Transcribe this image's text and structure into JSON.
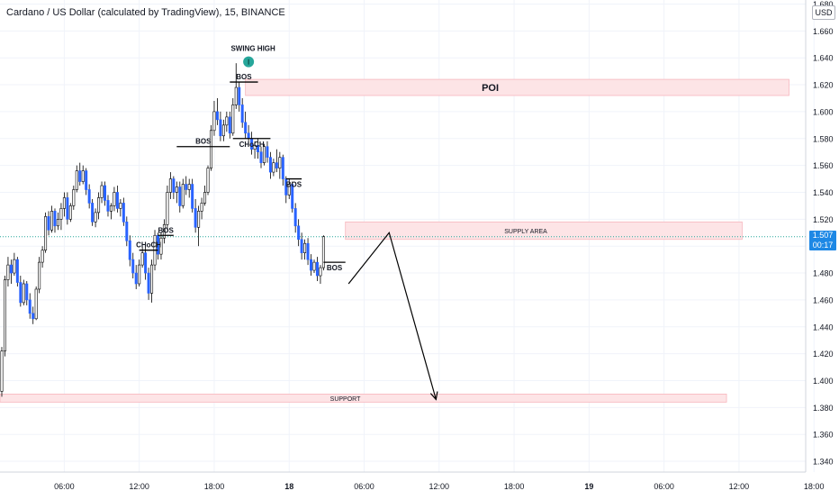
{
  "title": "Cardano / US Dollar (calculated by TradingView), 15, BINANCE",
  "price_axis_unit": "USD",
  "last_price": "1.507",
  "countdown": "00:17",
  "colors": {
    "bull": "#ffffff",
    "bear": "#2962ff",
    "wick": "#000000",
    "zone_fill": "#fde4e6",
    "zone_border": "#f7b6bd",
    "price_line": "#26a69a",
    "swing_dot": "#26a69a",
    "grid": "#f0f3fa"
  },
  "chart_data": {
    "type": "candlestick",
    "y_ticks": [
      "1.680",
      "1.660",
      "1.640",
      "1.620",
      "1.600",
      "1.580",
      "1.560",
      "1.540",
      "1.520",
      "1.500",
      "1.480",
      "1.460",
      "1.440",
      "1.420",
      "1.400",
      "1.380",
      "1.360",
      "1.340"
    ],
    "y_tick_values": [
      1.68,
      1.66,
      1.64,
      1.62,
      1.6,
      1.58,
      1.56,
      1.54,
      1.52,
      1.5,
      1.48,
      1.46,
      1.44,
      1.42,
      1.4,
      1.38,
      1.36,
      1.34
    ],
    "ylim": [
      1.332,
      1.683
    ],
    "x_ticks": [
      {
        "label": "06:00",
        "bar": 20,
        "bold": false
      },
      {
        "label": "12:00",
        "bar": 44,
        "bold": false
      },
      {
        "label": "18:00",
        "bar": 68,
        "bold": false
      },
      {
        "label": "18",
        "bar": 92,
        "bold": true
      },
      {
        "label": "06:00",
        "bar": 116,
        "bold": false
      },
      {
        "label": "12:00",
        "bar": 140,
        "bold": false
      },
      {
        "label": "18:00",
        "bar": 164,
        "bold": false
      },
      {
        "label": "19",
        "bar": 188,
        "bold": true
      },
      {
        "label": "06:00",
        "bar": 212,
        "bold": false
      },
      {
        "label": "12:00",
        "bar": 236,
        "bold": false
      },
      {
        "label": "18:00",
        "bar": 260,
        "bold": false
      }
    ],
    "candles": [
      {
        "o": 1.392,
        "h": 1.425,
        "l": 1.388,
        "c": 1.422
      },
      {
        "o": 1.422,
        "h": 1.478,
        "l": 1.418,
        "c": 1.475
      },
      {
        "o": 1.475,
        "h": 1.492,
        "l": 1.47,
        "c": 1.486
      },
      {
        "o": 1.486,
        "h": 1.49,
        "l": 1.472,
        "c": 1.48
      },
      {
        "o": 1.48,
        "h": 1.495,
        "l": 1.478,
        "c": 1.49
      },
      {
        "o": 1.49,
        "h": 1.492,
        "l": 1.47,
        "c": 1.473
      },
      {
        "o": 1.473,
        "h": 1.478,
        "l": 1.455,
        "c": 1.458
      },
      {
        "o": 1.458,
        "h": 1.475,
        "l": 1.456,
        "c": 1.472
      },
      {
        "o": 1.472,
        "h": 1.474,
        "l": 1.456,
        "c": 1.46
      },
      {
        "o": 1.46,
        "h": 1.465,
        "l": 1.446,
        "c": 1.45
      },
      {
        "o": 1.45,
        "h": 1.455,
        "l": 1.442,
        "c": 1.446
      },
      {
        "o": 1.446,
        "h": 1.47,
        "l": 1.445,
        "c": 1.468
      },
      {
        "o": 1.468,
        "h": 1.492,
        "l": 1.465,
        "c": 1.488
      },
      {
        "o": 1.488,
        "h": 1.5,
        "l": 1.484,
        "c": 1.497
      },
      {
        "o": 1.497,
        "h": 1.525,
        "l": 1.495,
        "c": 1.522
      },
      {
        "o": 1.522,
        "h": 1.526,
        "l": 1.508,
        "c": 1.512
      },
      {
        "o": 1.512,
        "h": 1.53,
        "l": 1.51,
        "c": 1.526
      },
      {
        "o": 1.526,
        "h": 1.528,
        "l": 1.51,
        "c": 1.515
      },
      {
        "o": 1.515,
        "h": 1.525,
        "l": 1.512,
        "c": 1.52
      },
      {
        "o": 1.52,
        "h": 1.532,
        "l": 1.512,
        "c": 1.528
      },
      {
        "o": 1.528,
        "h": 1.54,
        "l": 1.522,
        "c": 1.536
      },
      {
        "o": 1.536,
        "h": 1.54,
        "l": 1.516,
        "c": 1.52
      },
      {
        "o": 1.52,
        "h": 1.532,
        "l": 1.518,
        "c": 1.53
      },
      {
        "o": 1.53,
        "h": 1.545,
        "l": 1.527,
        "c": 1.542
      },
      {
        "o": 1.542,
        "h": 1.56,
        "l": 1.54,
        "c": 1.556
      },
      {
        "o": 1.556,
        "h": 1.562,
        "l": 1.545,
        "c": 1.548
      },
      {
        "o": 1.548,
        "h": 1.56,
        "l": 1.546,
        "c": 1.556
      },
      {
        "o": 1.556,
        "h": 1.558,
        "l": 1.538,
        "c": 1.542
      },
      {
        "o": 1.542,
        "h": 1.546,
        "l": 1.528,
        "c": 1.532
      },
      {
        "o": 1.532,
        "h": 1.535,
        "l": 1.515,
        "c": 1.518
      },
      {
        "o": 1.518,
        "h": 1.528,
        "l": 1.514,
        "c": 1.525
      },
      {
        "o": 1.525,
        "h": 1.54,
        "l": 1.52,
        "c": 1.536
      },
      {
        "o": 1.536,
        "h": 1.548,
        "l": 1.532,
        "c": 1.545
      },
      {
        "o": 1.545,
        "h": 1.548,
        "l": 1.53,
        "c": 1.534
      },
      {
        "o": 1.534,
        "h": 1.538,
        "l": 1.522,
        "c": 1.526
      },
      {
        "o": 1.526,
        "h": 1.532,
        "l": 1.52,
        "c": 1.53
      },
      {
        "o": 1.53,
        "h": 1.544,
        "l": 1.526,
        "c": 1.54
      },
      {
        "o": 1.54,
        "h": 1.545,
        "l": 1.525,
        "c": 1.528
      },
      {
        "o": 1.528,
        "h": 1.535,
        "l": 1.522,
        "c": 1.532
      },
      {
        "o": 1.532,
        "h": 1.536,
        "l": 1.515,
        "c": 1.518
      },
      {
        "o": 1.518,
        "h": 1.522,
        "l": 1.5,
        "c": 1.504
      },
      {
        "o": 1.504,
        "h": 1.508,
        "l": 1.485,
        "c": 1.49
      },
      {
        "o": 1.49,
        "h": 1.495,
        "l": 1.476,
        "c": 1.48
      },
      {
        "o": 1.48,
        "h": 1.486,
        "l": 1.468,
        "c": 1.472
      },
      {
        "o": 1.472,
        "h": 1.49,
        "l": 1.47,
        "c": 1.486
      },
      {
        "o": 1.486,
        "h": 1.5,
        "l": 1.484,
        "c": 1.495
      },
      {
        "o": 1.495,
        "h": 1.5,
        "l": 1.475,
        "c": 1.48
      },
      {
        "o": 1.48,
        "h": 1.484,
        "l": 1.46,
        "c": 1.465
      },
      {
        "o": 1.465,
        "h": 1.49,
        "l": 1.458,
        "c": 1.486
      },
      {
        "o": 1.486,
        "h": 1.512,
        "l": 1.482,
        "c": 1.508
      },
      {
        "o": 1.508,
        "h": 1.51,
        "l": 1.49,
        "c": 1.494
      },
      {
        "o": 1.494,
        "h": 1.51,
        "l": 1.49,
        "c": 1.506
      },
      {
        "o": 1.506,
        "h": 1.52,
        "l": 1.502,
        "c": 1.516
      },
      {
        "o": 1.516,
        "h": 1.545,
        "l": 1.512,
        "c": 1.54
      },
      {
        "o": 1.54,
        "h": 1.555,
        "l": 1.535,
        "c": 1.55
      },
      {
        "o": 1.55,
        "h": 1.552,
        "l": 1.535,
        "c": 1.54
      },
      {
        "o": 1.54,
        "h": 1.548,
        "l": 1.532,
        "c": 1.544
      },
      {
        "o": 1.544,
        "h": 1.548,
        "l": 1.525,
        "c": 1.53
      },
      {
        "o": 1.53,
        "h": 1.55,
        "l": 1.528,
        "c": 1.546
      },
      {
        "o": 1.546,
        "h": 1.552,
        "l": 1.538,
        "c": 1.542
      },
      {
        "o": 1.542,
        "h": 1.55,
        "l": 1.536,
        "c": 1.546
      },
      {
        "o": 1.546,
        "h": 1.55,
        "l": 1.525,
        "c": 1.528
      },
      {
        "o": 1.528,
        "h": 1.535,
        "l": 1.51,
        "c": 1.514
      },
      {
        "o": 1.514,
        "h": 1.53,
        "l": 1.5,
        "c": 1.526
      },
      {
        "o": 1.526,
        "h": 1.536,
        "l": 1.52,
        "c": 1.532
      },
      {
        "o": 1.532,
        "h": 1.545,
        "l": 1.53,
        "c": 1.54
      },
      {
        "o": 1.54,
        "h": 1.56,
        "l": 1.538,
        "c": 1.558
      },
      {
        "o": 1.558,
        "h": 1.59,
        "l": 1.556,
        "c": 1.586
      },
      {
        "o": 1.586,
        "h": 1.608,
        "l": 1.582,
        "c": 1.6
      },
      {
        "o": 1.6,
        "h": 1.61,
        "l": 1.59,
        "c": 1.594
      },
      {
        "o": 1.594,
        "h": 1.6,
        "l": 1.578,
        "c": 1.582
      },
      {
        "o": 1.582,
        "h": 1.594,
        "l": 1.578,
        "c": 1.59
      },
      {
        "o": 1.59,
        "h": 1.6,
        "l": 1.585,
        "c": 1.596
      },
      {
        "o": 1.596,
        "h": 1.6,
        "l": 1.58,
        "c": 1.584
      },
      {
        "o": 1.584,
        "h": 1.61,
        "l": 1.582,
        "c": 1.605
      },
      {
        "o": 1.605,
        "h": 1.636,
        "l": 1.602,
        "c": 1.618
      },
      {
        "o": 1.618,
        "h": 1.622,
        "l": 1.6,
        "c": 1.605
      },
      {
        "o": 1.605,
        "h": 1.61,
        "l": 1.588,
        "c": 1.592
      },
      {
        "o": 1.592,
        "h": 1.6,
        "l": 1.58,
        "c": 1.584
      },
      {
        "o": 1.584,
        "h": 1.59,
        "l": 1.575,
        "c": 1.58
      },
      {
        "o": 1.58,
        "h": 1.585,
        "l": 1.568,
        "c": 1.572
      },
      {
        "o": 1.572,
        "h": 1.578,
        "l": 1.565,
        "c": 1.575
      },
      {
        "o": 1.575,
        "h": 1.58,
        "l": 1.565,
        "c": 1.57
      },
      {
        "o": 1.57,
        "h": 1.574,
        "l": 1.558,
        "c": 1.562
      },
      {
        "o": 1.562,
        "h": 1.576,
        "l": 1.56,
        "c": 1.574
      },
      {
        "o": 1.574,
        "h": 1.578,
        "l": 1.562,
        "c": 1.566
      },
      {
        "o": 1.566,
        "h": 1.57,
        "l": 1.55,
        "c": 1.555
      },
      {
        "o": 1.555,
        "h": 1.565,
        "l": 1.552,
        "c": 1.562
      },
      {
        "o": 1.562,
        "h": 1.572,
        "l": 1.555,
        "c": 1.558
      },
      {
        "o": 1.558,
        "h": 1.57,
        "l": 1.55,
        "c": 1.566
      },
      {
        "o": 1.566,
        "h": 1.568,
        "l": 1.545,
        "c": 1.55
      },
      {
        "o": 1.55,
        "h": 1.552,
        "l": 1.532,
        "c": 1.538
      },
      {
        "o": 1.538,
        "h": 1.55,
        "l": 1.535,
        "c": 1.546
      },
      {
        "o": 1.546,
        "h": 1.548,
        "l": 1.525,
        "c": 1.528
      },
      {
        "o": 1.528,
        "h": 1.532,
        "l": 1.51,
        "c": 1.515
      },
      {
        "o": 1.515,
        "h": 1.52,
        "l": 1.5,
        "c": 1.505
      },
      {
        "o": 1.505,
        "h": 1.51,
        "l": 1.49,
        "c": 1.495
      },
      {
        "o": 1.495,
        "h": 1.505,
        "l": 1.49,
        "c": 1.502
      },
      {
        "o": 1.502,
        "h": 1.506,
        "l": 1.486,
        "c": 1.49
      },
      {
        "o": 1.49,
        "h": 1.494,
        "l": 1.478,
        "c": 1.482
      },
      {
        "o": 1.482,
        "h": 1.49,
        "l": 1.48,
        "c": 1.488
      },
      {
        "o": 1.488,
        "h": 1.492,
        "l": 1.474,
        "c": 1.478
      },
      {
        "o": 1.478,
        "h": 1.486,
        "l": 1.472,
        "c": 1.484
      },
      {
        "o": 1.484,
        "h": 1.508,
        "l": 1.482,
        "c": 1.507
      }
    ],
    "annotations": {
      "zones": [
        {
          "label": "POI",
          "y_top": 1.624,
          "y_bottom": 1.612,
          "bar_start": 78,
          "bar_end": 252
        },
        {
          "label": "SUPPLY AREA",
          "y_top": 1.518,
          "y_bottom": 1.505,
          "bar_start": 110,
          "bar_end": 237
        },
        {
          "label": "SUPPORT",
          "y_top": 1.39,
          "y_bottom": 1.384,
          "bar_start": 0,
          "bar_end": 232
        }
      ],
      "levels": [
        {
          "label": "BOS",
          "y": 1.622,
          "bar_start": 73,
          "bar_end": 82,
          "label_pos": "above"
        },
        {
          "label": "BOS",
          "y": 1.574,
          "bar_start": 56,
          "bar_end": 73,
          "label_pos": "above"
        },
        {
          "label": "CHoCH",
          "y": 1.58,
          "bar_start": 74,
          "bar_end": 86,
          "label_pos": "below"
        },
        {
          "label": "BOS",
          "y": 1.508,
          "bar_start": 50,
          "bar_end": 55,
          "label_pos": "above"
        },
        {
          "label": "CHoCH",
          "y": 1.497,
          "bar_start": 44,
          "bar_end": 50,
          "label_pos": "above"
        },
        {
          "label": "BOS",
          "y": 1.55,
          "bar_start": 91,
          "bar_end": 96,
          "label_pos": "below"
        },
        {
          "label": "BOS",
          "y": 1.488,
          "bar_start": 103,
          "bar_end": 110,
          "label_pos": "below"
        }
      ],
      "swing_high": {
        "label": "SWING HIGH",
        "bar": 79,
        "price": 1.637
      },
      "projection": [
        {
          "bar": 111,
          "price": 1.472
        },
        {
          "bar": 124,
          "price": 1.51
        },
        {
          "bar": 139,
          "price": 1.386
        }
      ]
    }
  }
}
